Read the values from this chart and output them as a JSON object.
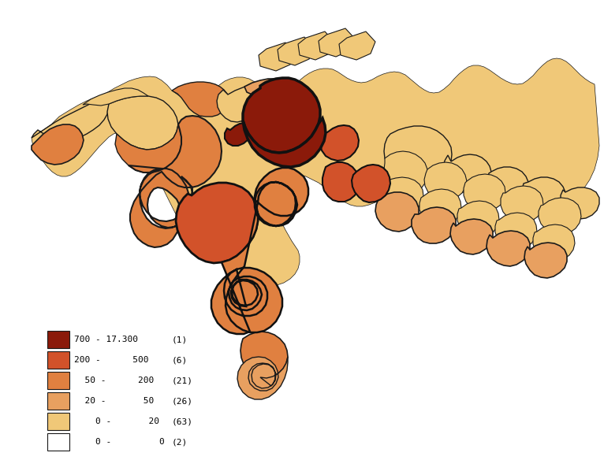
{
  "colors": {
    "darkred": "#8B1A0A",
    "orange": "#D2522A",
    "lightorange": "#E08040",
    "tan": "#E8A060",
    "cream": "#F0C878",
    "lightcream": "#F5DFA0",
    "white": "#FFFFFF",
    "outline_thick": "#111111",
    "outline_thin": "#333333",
    "background": "#FFFFFF"
  },
  "legend": [
    {
      "label": "700 - 17.300",
      "count": "(1)",
      "color": "#8B1A0A"
    },
    {
      "label": "200 -      500",
      "count": "(6)",
      "color": "#D2522A"
    },
    {
      "label": "  50 -      200",
      "count": "(21)",
      "color": "#E08040"
    },
    {
      "label": "  20 -       50",
      "count": "(26)",
      "color": "#E8A060"
    },
    {
      "label": "    0 -       20",
      "count": "(63)",
      "color": "#F0C878"
    },
    {
      "label": "    0 -         0",
      "count": "(2)",
      "color": "#FFFFFF"
    }
  ],
  "figsize": [
    7.66,
    5.84
  ],
  "dpi": 100
}
